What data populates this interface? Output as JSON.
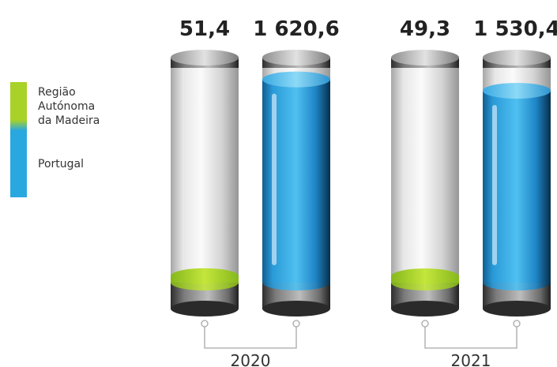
{
  "legend": {
    "madeira_lines": [
      "Região",
      "Autónoma",
      "da Madeira"
    ],
    "portugal": "Portugal"
  },
  "colors": {
    "madeira": "#a8d227",
    "portugal": "#29a8e0",
    "glass": "#c9c9c9",
    "cap": "#5a5a5a"
  },
  "chart_data": {
    "type": "bar",
    "categories": [
      "2020",
      "2021"
    ],
    "series": [
      {
        "name": "Região Autónoma da Madeira",
        "values": [
          51.4,
          49.3
        ]
      },
      {
        "name": "Portugal",
        "values": [
          1620.6,
          1530.4
        ]
      }
    ],
    "labels": [
      [
        "51,4",
        "1 620,6"
      ],
      [
        "49,3",
        "1 530,4"
      ]
    ],
    "ylim": [
      0,
      1650
    ]
  }
}
